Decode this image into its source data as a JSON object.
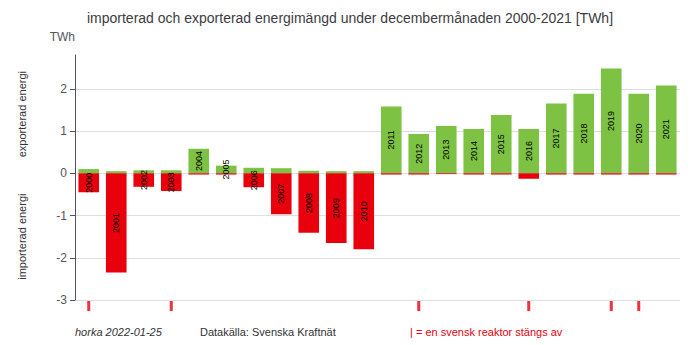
{
  "chart_data": {
    "type": "bar",
    "title": "importerad och exporterad energimängd under decembermånaden 2000-2021 [TWh]",
    "ylabel": "TWh",
    "ylabel_parts": [
      "exporterad energi",
      "importerad energi"
    ],
    "categories": [
      2000,
      2001,
      2002,
      2003,
      2004,
      2005,
      2006,
      2007,
      2008,
      2009,
      2010,
      2011,
      2012,
      2013,
      2014,
      2015,
      2016,
      2017,
      2018,
      2019,
      2020,
      2021
    ],
    "series": [
      {
        "color": "#7DC242",
        "values": [
          0.1,
          0.05,
          0.07,
          0.07,
          0.58,
          0.18,
          0.13,
          0.12,
          0.06,
          0.05,
          0.05,
          1.58,
          0.93,
          1.12,
          1.05,
          1.38,
          1.05,
          1.65,
          1.88,
          2.48,
          1.88,
          2.08
        ]
      },
      {
        "color": "#E8000D",
        "values": [
          -0.45,
          -2.35,
          -0.32,
          -0.42,
          -0.03,
          -0.03,
          -0.33,
          -0.97,
          -1.41,
          -1.65,
          -1.8,
          -0.03,
          -0.03,
          -0.02,
          -0.03,
          -0.03,
          -0.13,
          -0.03,
          -0.03,
          -0.03,
          -0.03,
          -0.03
        ]
      }
    ],
    "stacked": true,
    "ylim": [
      -3.0,
      2.8
    ],
    "yticks": [
      -3,
      -2,
      -1,
      0,
      1,
      2
    ],
    "grid": true,
    "tick_labels": "y",
    "markers": {
      "categories": [
        2000,
        2003,
        2012,
        2016,
        2019,
        2020
      ],
      "color": "#E8000D",
      "label": "| = en svensk reaktor stängs av"
    },
    "footer": [
      "horka 2022-01-25",
      "Datakälla: Svenska Kraftnät"
    ]
  }
}
